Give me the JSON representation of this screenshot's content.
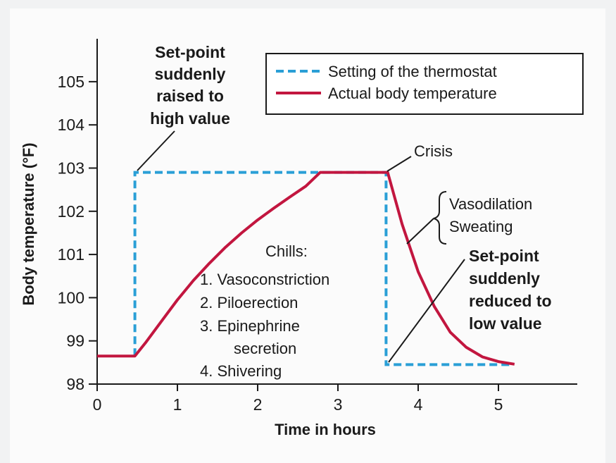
{
  "chart_data": {
    "type": "line",
    "title": "",
    "xlabel": "Time in hours",
    "ylabel": "Body temperature (°F)",
    "xlim": [
      0,
      5.9
    ],
    "ylim": [
      98,
      105.9
    ],
    "x_ticks": [
      "0",
      "1",
      "2",
      "3",
      "4",
      "5"
    ],
    "y_ticks": [
      "98",
      "99",
      "100",
      "101",
      "102",
      "103",
      "104",
      "105"
    ],
    "series": [
      {
        "name": "Setting of the thermostat",
        "style": "dashed",
        "color": "#2a9fd6",
        "points": [
          [
            0.47,
            98.65
          ],
          [
            0.47,
            102.9
          ],
          [
            3.6,
            102.9
          ],
          [
            3.6,
            98.45
          ],
          [
            5.15,
            98.45
          ]
        ]
      },
      {
        "name": "Actual body temperature",
        "style": "solid",
        "color": "#c2163f",
        "points": [
          [
            0,
            98.65
          ],
          [
            0.47,
            98.65
          ],
          [
            0.6,
            98.95
          ],
          [
            0.8,
            99.45
          ],
          [
            1.0,
            99.95
          ],
          [
            1.2,
            100.4
          ],
          [
            1.4,
            100.8
          ],
          [
            1.6,
            101.17
          ],
          [
            1.8,
            101.5
          ],
          [
            2.0,
            101.8
          ],
          [
            2.2,
            102.07
          ],
          [
            2.4,
            102.33
          ],
          [
            2.6,
            102.58
          ],
          [
            2.78,
            102.9
          ],
          [
            3.62,
            102.9
          ],
          [
            3.8,
            101.7
          ],
          [
            4.0,
            100.6
          ],
          [
            4.2,
            99.8
          ],
          [
            4.4,
            99.2
          ],
          [
            4.6,
            98.85
          ],
          [
            4.8,
            98.63
          ],
          [
            5.0,
            98.52
          ],
          [
            5.2,
            98.46
          ]
        ]
      }
    ],
    "annotations": {
      "set_point_raised": [
        "Set-point",
        "suddenly",
        "raised to",
        "high value"
      ],
      "crisis": "Crisis",
      "vasodilation": "Vasodilation",
      "sweating": "Sweating",
      "chills_title": "Chills:",
      "chills_items": [
        "1. Vasoconstriction",
        "2. Piloerection",
        "3. Epinephrine",
        "secretion",
        "4. Shivering"
      ],
      "set_point_reduced": [
        "Set-point",
        "suddenly",
        "reduced to",
        "low value"
      ]
    },
    "legend_position": "top-right"
  }
}
